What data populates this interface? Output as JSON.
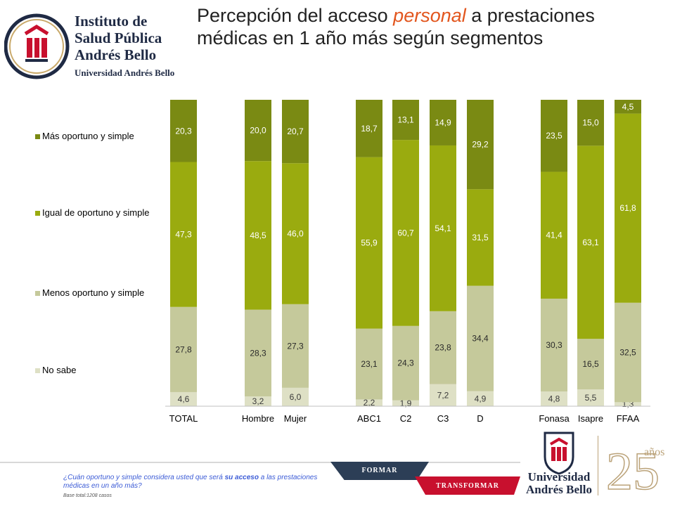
{
  "header": {
    "logo_lines": [
      "Instituto de",
      "Salud Pública",
      "Andrés Bello",
      "Universidad Andrés Bello"
    ],
    "title_before": "Percepción del acceso ",
    "title_highlight": "personal",
    "title_after": " a prestaciones médicas en 1 año más según segmentos"
  },
  "colors": {
    "mas_oportuno": "#7a8a13",
    "igual": "#9aab0f",
    "menos": "#c5c99b",
    "no_sabe": "#dee0c5",
    "title_highlight": "#e2561e",
    "footnote": "#3b5bd6"
  },
  "chart_data": {
    "type": "bar",
    "stacked": true,
    "percent_axis": true,
    "categories": [
      "TOTAL",
      "Hombre",
      "Mujer",
      "ABC1",
      "C2",
      "C3",
      "D",
      "Fonasa",
      "Isapre",
      "FFAA"
    ],
    "series": [
      {
        "name": "No sabe",
        "values": [
          4.6,
          3.2,
          6.0,
          2.2,
          1.9,
          7.2,
          4.9,
          4.8,
          5.5,
          1.3
        ]
      },
      {
        "name": "Menos oportuno y simple",
        "values": [
          27.8,
          28.3,
          27.3,
          23.1,
          24.3,
          23.8,
          34.4,
          30.3,
          16.5,
          32.5
        ]
      },
      {
        "name": "Igual de oportuno y simple",
        "values": [
          47.3,
          48.5,
          46.0,
          55.9,
          60.7,
          54.1,
          31.5,
          41.4,
          63.1,
          61.8
        ]
      },
      {
        "name": "Más oportuno y simple",
        "values": [
          20.3,
          20.0,
          20.7,
          18.7,
          13.1,
          14.9,
          29.2,
          23.5,
          15.0,
          4.5
        ]
      }
    ],
    "labels": [
      [
        "4,6",
        "3,2",
        "6,0",
        "2,2",
        "1,9",
        "7,2",
        "4,9",
        "4,8",
        "5,5",
        "1,3"
      ],
      [
        "27,8",
        "28,3",
        "27,3",
        "23,1",
        "24,3",
        "23,8",
        "34,4",
        "30,3",
        "16,5",
        "32,5"
      ],
      [
        "47,3",
        "48,5",
        "46,0",
        "55,9",
        "60,7",
        "54,1",
        "31,5",
        "41,4",
        "63,1",
        "61,8"
      ],
      [
        "20,3",
        "20,0",
        "20,7",
        "18,7",
        "13,1",
        "14,9",
        "29,2",
        "23,5",
        "15,0",
        "4,5"
      ]
    ],
    "legend_order": [
      "Más oportuno y simple",
      "Igual de oportuno y simple",
      "Menos oportuno y simple",
      "No sabe"
    ],
    "legend_position": "left"
  },
  "footer": {
    "question_before": "¿Cuán oportuno y simple considera usted que será ",
    "question_bold": "su acceso",
    "question_after": " a las prestaciones médicas en un año más?",
    "base": "Base total:1208  casos",
    "banner_formar": "FORMAR",
    "banner_transformar": "TRANSFORMAR",
    "unab_line1": "Universidad",
    "unab_line2": "Andrés Bello",
    "anniv_years": "años"
  }
}
